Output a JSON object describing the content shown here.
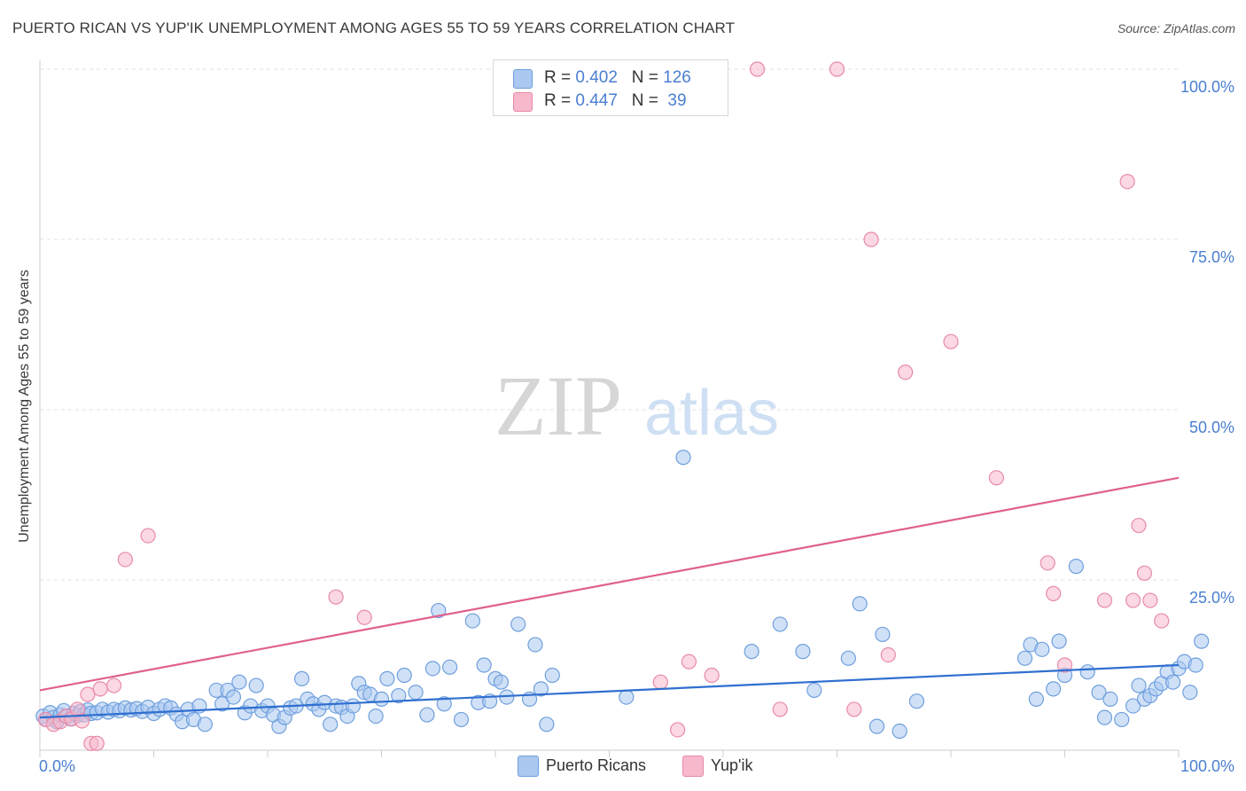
{
  "header": {
    "title": "PUERTO RICAN VS YUP'IK UNEMPLOYMENT AMONG AGES 55 TO 59 YEARS CORRELATION CHART",
    "source": "Source: ZipAtlas.com"
  },
  "watermark": {
    "zip": "ZIP",
    "atlas": "atlas"
  },
  "legend": {
    "rows": [
      {
        "r_label": "R = ",
        "r_value": "0.402",
        "n_label": "N = ",
        "n_value": "126"
      },
      {
        "r_label": "R = ",
        "r_value": "0.447",
        "n_label": "N = ",
        "n_value": " 39"
      }
    ]
  },
  "bottom_legend": {
    "items": [
      {
        "label": "Puerto Ricans"
      },
      {
        "label": "Yup'ik"
      }
    ]
  },
  "colors": {
    "blue_fill": "#aac8f0",
    "blue_stroke": "#6f9fdd",
    "blue_line": "#2f6fd0",
    "pink_fill": "#f7b8cc",
    "pink_stroke": "#e88aa8",
    "pink_line": "#e0608c",
    "tick_text": "#4a7fd0",
    "grid": "#e2e2e2"
  },
  "chart_data": {
    "type": "scatter",
    "title": "PUERTO RICAN VS YUP'IK UNEMPLOYMENT AMONG AGES 55 TO 59 YEARS CORRELATION CHART",
    "xlabel": "",
    "ylabel": "Unemployment Among Ages 55 to 59 years",
    "xlim": [
      0,
      100
    ],
    "ylim": [
      0,
      105
    ],
    "x_tick_labels": [
      {
        "value": 0,
        "label": "0.0%"
      },
      {
        "value": 100,
        "label": "100.0%"
      }
    ],
    "y_tick_labels": [
      {
        "value": 25,
        "label": "25.0%"
      },
      {
        "value": 50,
        "label": "50.0%"
      },
      {
        "value": 75,
        "label": "75.0%"
      },
      {
        "value": 100,
        "label": "100.0%"
      }
    ],
    "grid": true,
    "legend_position": "top-center",
    "series": [
      {
        "name": "Puerto Ricans",
        "trend": {
          "x0": 0,
          "y0": 4.8,
          "x1": 100,
          "y1": 12.5
        },
        "points": [
          [
            0.3,
            5.0
          ],
          [
            0.6,
            4.5
          ],
          [
            0.9,
            5.5
          ],
          [
            1.2,
            4.8
          ],
          [
            1.5,
            4.2
          ],
          [
            1.8,
            5.2
          ],
          [
            2.1,
            5.8
          ],
          [
            2.4,
            5.0
          ],
          [
            2.7,
            4.6
          ],
          [
            3.0,
            5.4
          ],
          [
            3.3,
            5.1
          ],
          [
            3.6,
            5.7
          ],
          [
            3.9,
            5.2
          ],
          [
            4.2,
            5.9
          ],
          [
            4.5,
            5.4
          ],
          [
            5.0,
            5.5
          ],
          [
            5.5,
            6.0
          ],
          [
            6.0,
            5.6
          ],
          [
            6.5,
            6.0
          ],
          [
            7.0,
            5.8
          ],
          [
            7.5,
            6.2
          ],
          [
            8.0,
            5.9
          ],
          [
            8.5,
            6.1
          ],
          [
            9.0,
            5.7
          ],
          [
            9.5,
            6.3
          ],
          [
            10.0,
            5.4
          ],
          [
            10.5,
            6.0
          ],
          [
            11.0,
            6.5
          ],
          [
            11.5,
            6.2
          ],
          [
            12.0,
            5.3
          ],
          [
            12.5,
            4.2
          ],
          [
            13.0,
            6.0
          ],
          [
            13.5,
            4.5
          ],
          [
            14.0,
            6.5
          ],
          [
            14.5,
            3.8
          ],
          [
            15.5,
            8.8
          ],
          [
            16.0,
            6.8
          ],
          [
            16.5,
            8.8
          ],
          [
            17.0,
            7.8
          ],
          [
            17.5,
            10.0
          ],
          [
            18.0,
            5.5
          ],
          [
            18.5,
            6.5
          ],
          [
            19.0,
            9.5
          ],
          [
            19.5,
            5.8
          ],
          [
            20.0,
            6.5
          ],
          [
            20.5,
            5.2
          ],
          [
            21.0,
            3.5
          ],
          [
            21.5,
            4.8
          ],
          [
            22.0,
            6.2
          ],
          [
            22.5,
            6.5
          ],
          [
            23.0,
            10.5
          ],
          [
            23.5,
            7.5
          ],
          [
            24.0,
            6.8
          ],
          [
            24.5,
            6.0
          ],
          [
            25.0,
            7.0
          ],
          [
            25.5,
            3.8
          ],
          [
            26.0,
            6.5
          ],
          [
            26.5,
            6.3
          ],
          [
            27.0,
            5.0
          ],
          [
            27.5,
            6.5
          ],
          [
            28.0,
            9.8
          ],
          [
            28.5,
            8.5
          ],
          [
            29.0,
            8.2
          ],
          [
            29.5,
            5.0
          ],
          [
            30.0,
            7.5
          ],
          [
            30.5,
            10.5
          ],
          [
            31.5,
            8.0
          ],
          [
            32.0,
            11.0
          ],
          [
            33.0,
            8.5
          ],
          [
            34.0,
            5.2
          ],
          [
            34.5,
            12.0
          ],
          [
            35.0,
            20.5
          ],
          [
            35.5,
            6.8
          ],
          [
            36.0,
            12.2
          ],
          [
            37.0,
            4.5
          ],
          [
            38.0,
            19.0
          ],
          [
            38.5,
            7.0
          ],
          [
            39.0,
            12.5
          ],
          [
            39.5,
            7.2
          ],
          [
            40.0,
            10.5
          ],
          [
            40.5,
            10.0
          ],
          [
            41.0,
            7.8
          ],
          [
            42.0,
            18.5
          ],
          [
            43.0,
            7.5
          ],
          [
            43.5,
            15.5
          ],
          [
            44.0,
            9.0
          ],
          [
            44.5,
            3.8
          ],
          [
            45.0,
            11.0
          ],
          [
            51.5,
            7.8
          ],
          [
            56.5,
            43.0
          ],
          [
            62.5,
            14.5
          ],
          [
            65.0,
            18.5
          ],
          [
            67.0,
            14.5
          ],
          [
            68.0,
            8.8
          ],
          [
            71.0,
            13.5
          ],
          [
            72.0,
            21.5
          ],
          [
            73.5,
            3.5
          ],
          [
            74.0,
            17.0
          ],
          [
            75.5,
            2.8
          ],
          [
            77.0,
            7.2
          ],
          [
            86.5,
            13.5
          ],
          [
            87.0,
            15.5
          ],
          [
            87.5,
            7.5
          ],
          [
            88.0,
            14.8
          ],
          [
            89.0,
            9.0
          ],
          [
            89.5,
            16.0
          ],
          [
            90.0,
            11.0
          ],
          [
            91.0,
            27.0
          ],
          [
            92.0,
            11.5
          ],
          [
            93.0,
            8.5
          ],
          [
            93.5,
            4.8
          ],
          [
            94.0,
            7.5
          ],
          [
            95.0,
            4.5
          ],
          [
            96.0,
            6.5
          ],
          [
            96.5,
            9.5
          ],
          [
            97.0,
            7.5
          ],
          [
            97.5,
            8.0
          ],
          [
            98.0,
            9.0
          ],
          [
            98.5,
            9.8
          ],
          [
            99.0,
            11.5
          ],
          [
            99.5,
            10.0
          ],
          [
            100.0,
            12.0
          ],
          [
            100.5,
            13.0
          ],
          [
            101.0,
            8.5
          ],
          [
            101.5,
            12.5
          ],
          [
            102.0,
            16.0
          ]
        ]
      },
      {
        "name": "Yup'ik",
        "trend": {
          "x0": 0,
          "y0": 8.8,
          "x1": 100,
          "y1": 40.0
        },
        "points": [
          [
            0.5,
            4.5
          ],
          [
            1.2,
            3.8
          ],
          [
            1.8,
            4.2
          ],
          [
            2.3,
            5.0
          ],
          [
            2.8,
            4.6
          ],
          [
            3.3,
            6.0
          ],
          [
            3.7,
            4.3
          ],
          [
            4.2,
            8.2
          ],
          [
            4.5,
            1.0
          ],
          [
            5.0,
            1.0
          ],
          [
            5.3,
            9.0
          ],
          [
            6.5,
            9.5
          ],
          [
            7.5,
            28.0
          ],
          [
            9.5,
            31.5
          ],
          [
            26.0,
            22.5
          ],
          [
            28.5,
            19.5
          ],
          [
            54.5,
            10.0
          ],
          [
            56.0,
            3.0
          ],
          [
            57.0,
            13.0
          ],
          [
            59.0,
            11.0
          ],
          [
            63.0,
            100.0
          ],
          [
            65.0,
            6.0
          ],
          [
            70.0,
            100.0
          ],
          [
            71.5,
            6.0
          ],
          [
            73.0,
            75.0
          ],
          [
            74.5,
            14.0
          ],
          [
            76.0,
            55.5
          ],
          [
            80.0,
            60.0
          ],
          [
            84.0,
            40.0
          ],
          [
            88.5,
            27.5
          ],
          [
            89.0,
            23.0
          ],
          [
            90.0,
            12.5
          ],
          [
            93.5,
            22.0
          ],
          [
            95.5,
            83.5
          ],
          [
            96.0,
            22.0
          ],
          [
            96.5,
            33.0
          ],
          [
            97.0,
            26.0
          ],
          [
            97.5,
            22.0
          ],
          [
            98.5,
            19.0
          ]
        ]
      }
    ]
  }
}
